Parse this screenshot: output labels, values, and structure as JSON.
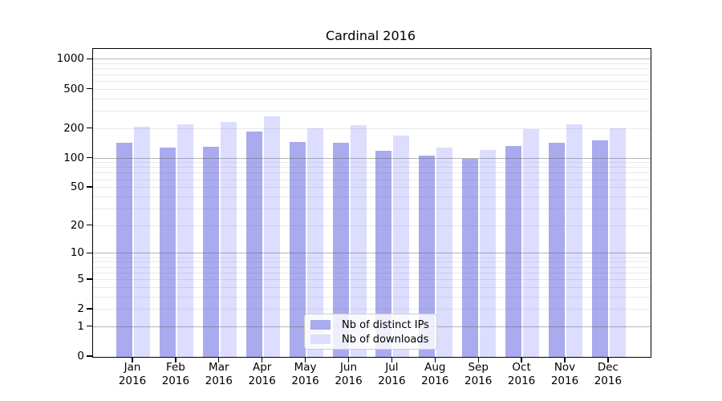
{
  "title": "Cardinal 2016",
  "legend": {
    "items": [
      {
        "label": "Nb of distinct IPs",
        "color": "#aaaaee"
      },
      {
        "label": "Nb of downloads",
        "color": "#ddddff"
      }
    ]
  },
  "chart_data": {
    "type": "bar",
    "title": "Cardinal 2016",
    "categories": [
      "Jan",
      "Feb",
      "Mar",
      "Apr",
      "May",
      "Jun",
      "Jul",
      "Aug",
      "Sep",
      "Oct",
      "Nov",
      "Dec"
    ],
    "x_year_line": "2016",
    "series": [
      {
        "name": "Nb of distinct IPs",
        "color": "#aaaaee",
        "values": [
          143,
          128,
          132,
          186,
          147,
          144,
          119,
          106,
          100,
          135,
          145,
          153
        ]
      },
      {
        "name": "Nb of downloads",
        "color": "#ddddff",
        "values": [
          209,
          221,
          236,
          268,
          202,
          217,
          170,
          128,
          122,
          198,
          221,
          203
        ]
      }
    ],
    "ylabel": "",
    "xlabel": "",
    "yscale": "log1p",
    "ylim": [
      0,
      1300
    ],
    "y_ticks": [
      0,
      1,
      2,
      5,
      10,
      20,
      50,
      100,
      200,
      500,
      1000
    ],
    "y_major_grid_values": [
      1,
      10,
      100,
      1000
    ],
    "y_minor_grid_subs": [
      2,
      3,
      4,
      5,
      6,
      7,
      8,
      9
    ],
    "grid": "horizontal major+minor, drawn over bars",
    "legend_position": "lower center",
    "colors": {
      "background": "#ffffff",
      "axis": "#000000",
      "major_grid": "#b5b5b5",
      "minor_grid": "#e9e9e9",
      "text": "#000000"
    }
  }
}
